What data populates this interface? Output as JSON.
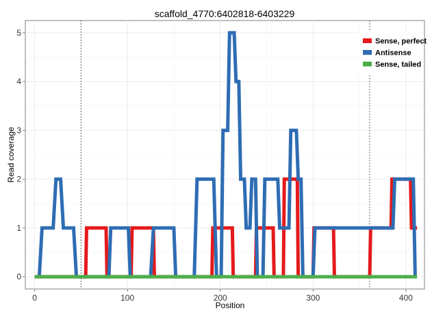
{
  "chart_data": {
    "type": "line",
    "title": "scaffold_4770:6402818-6403229",
    "xlabel": "Position",
    "ylabel": "Read coverage",
    "xlim": [
      -10,
      420
    ],
    "ylim": [
      -0.25,
      5.25
    ],
    "xticks": [
      0,
      100,
      200,
      300,
      400
    ],
    "yticks": [
      0,
      1,
      2,
      3,
      4,
      5
    ],
    "vlines": [
      50,
      361
    ],
    "grid": true,
    "legend_position": "top-right",
    "series": [
      {
        "name": "Sense, perfect",
        "color": "#e41a1c",
        "x": [
          0,
          55,
          56,
          77,
          78,
          104,
          105,
          128,
          129,
          191,
          192,
          213,
          214,
          238,
          239,
          257,
          258,
          268,
          269,
          283,
          284,
          300,
          301,
          322,
          323,
          361,
          362,
          384,
          385,
          405,
          406,
          412
        ],
        "y": [
          0,
          0,
          1,
          1,
          0,
          0,
          1,
          1,
          0,
          0,
          1,
          1,
          0,
          0,
          1,
          1,
          0,
          0,
          2,
          2,
          0,
          0,
          1,
          1,
          0,
          0,
          1,
          1,
          2,
          2,
          1,
          1
        ]
      },
      {
        "name": "Antisense",
        "color": "#2e6db4",
        "x": [
          5,
          8,
          20,
          23,
          28,
          31,
          42,
          45,
          80,
          82,
          101,
          103,
          125,
          128,
          150,
          152,
          172,
          175,
          193,
          196,
          201,
          203,
          208,
          210,
          215,
          217,
          220,
          222,
          226,
          228,
          232,
          234,
          238,
          240,
          246,
          248,
          262,
          264,
          274,
          276,
          282,
          284,
          287,
          289,
          300,
          302,
          386,
          388,
          408,
          410
        ],
        "y": [
          0,
          1,
          1,
          2,
          2,
          1,
          1,
          0,
          0,
          1,
          1,
          0,
          0,
          1,
          1,
          0,
          0,
          2,
          2,
          0,
          0,
          3,
          3,
          5,
          5,
          4,
          4,
          2,
          2,
          1,
          1,
          2,
          2,
          0,
          0,
          2,
          2,
          1,
          1,
          3,
          3,
          2,
          2,
          0,
          0,
          1,
          1,
          2,
          2,
          0
        ]
      },
      {
        "name": "Sense, tailed",
        "color": "#4daf4a",
        "x": [
          0,
          412
        ],
        "y": [
          0,
          0
        ]
      }
    ]
  }
}
